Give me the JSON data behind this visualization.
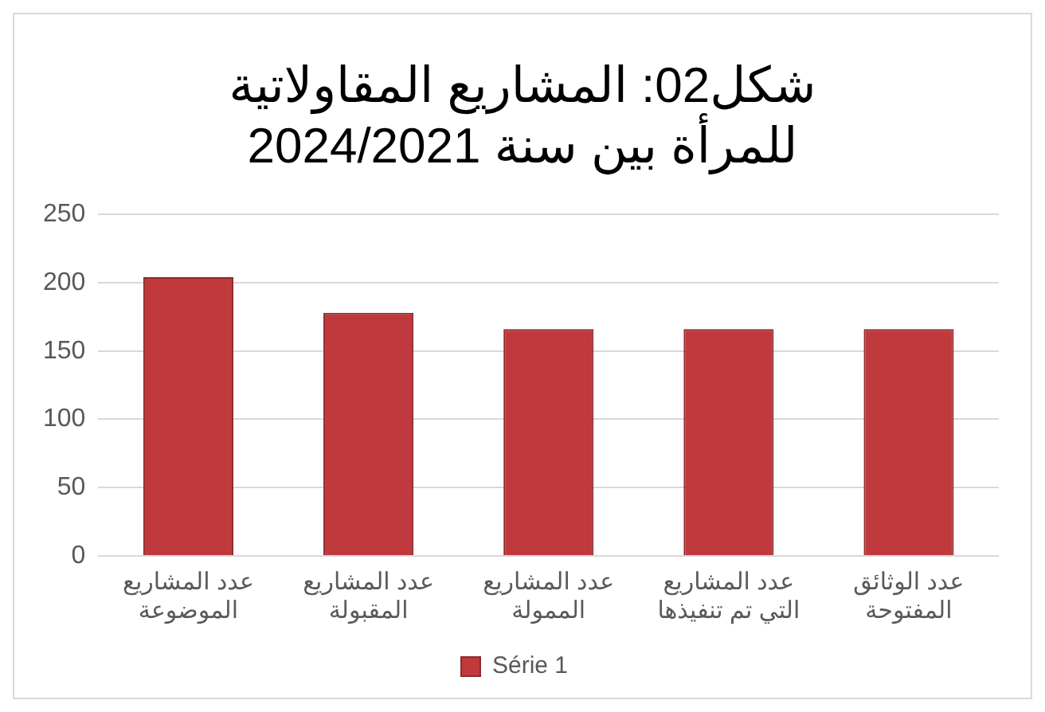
{
  "chart_data": {
    "type": "bar",
    "title": "شكل02: المشاريع المقاولاتية للمرأة بين سنة 2024/2021",
    "categories": [
      "عدد المشاريع الموضوعة",
      "عدد المشاريع المقبولة",
      "عدد المشاريع الممولة",
      "عدد المشاريع التي تم تنفيذها",
      "عدد الوثائق المفتوحة"
    ],
    "series": [
      {
        "name": "Série 1",
        "color": "#c0393d",
        "values": [
          204,
          178,
          166,
          166,
          166
        ]
      }
    ],
    "ylim": [
      0,
      250
    ],
    "yticks": [
      0,
      50,
      100,
      150,
      200,
      250
    ],
    "grid": "y",
    "legend": "bottom"
  }
}
